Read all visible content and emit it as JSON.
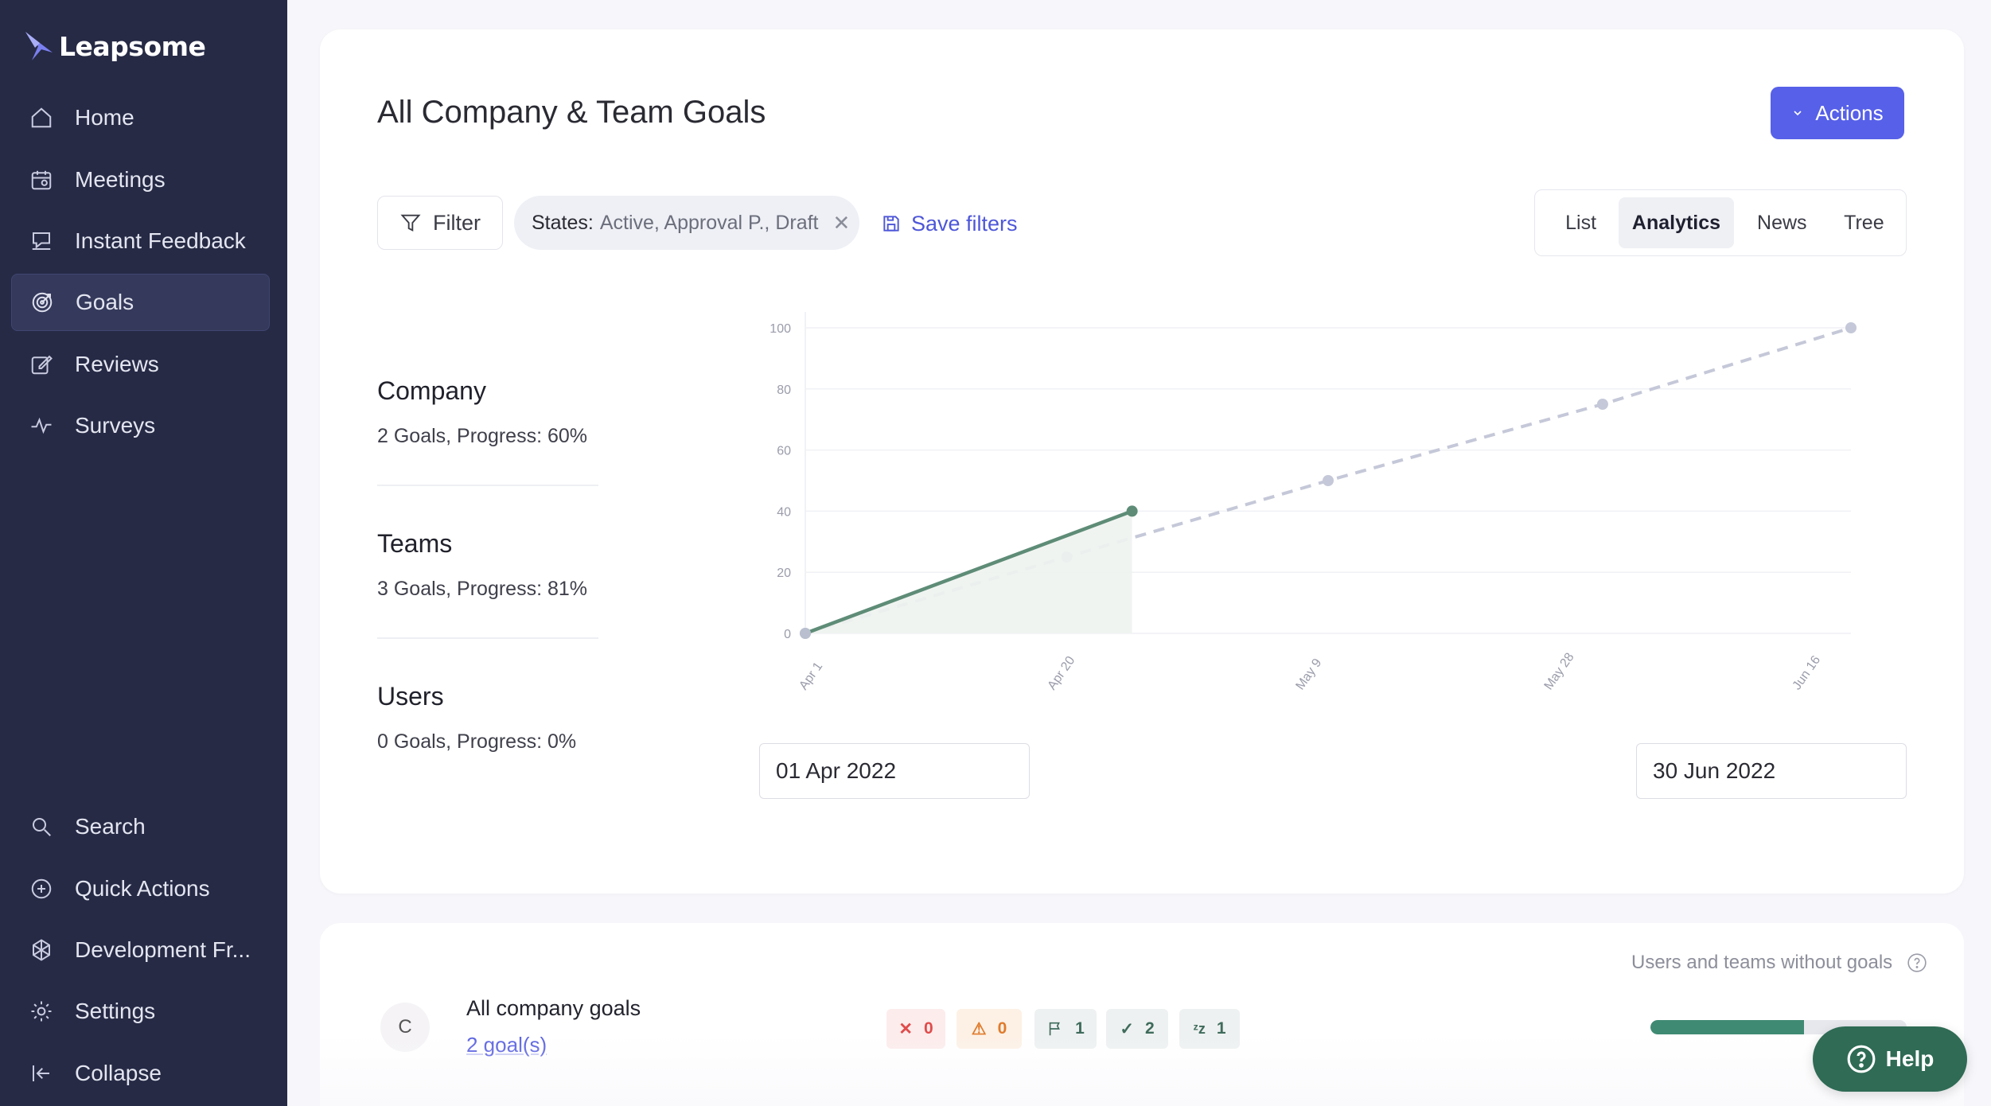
{
  "brand": {
    "name": "Leapsome"
  },
  "sidebar": {
    "items": [
      {
        "label": "Home",
        "icon": "home-icon"
      },
      {
        "label": "Meetings",
        "icon": "calendar-icon"
      },
      {
        "label": "Instant Feedback",
        "icon": "feedback-icon"
      },
      {
        "label": "Goals",
        "icon": "target-icon",
        "active": true
      },
      {
        "label": "Reviews",
        "icon": "edit-icon"
      },
      {
        "label": "Surveys",
        "icon": "pulse-icon"
      }
    ],
    "bottom_items": [
      {
        "label": "Search",
        "icon": "search-icon"
      },
      {
        "label": "Quick Actions",
        "icon": "plus-circle-icon"
      },
      {
        "label": "Development Fr...",
        "icon": "framework-icon"
      },
      {
        "label": "Settings",
        "icon": "gear-icon"
      },
      {
        "label": "Collapse",
        "icon": "collapse-icon"
      }
    ]
  },
  "header": {
    "title": "All Company & Team Goals",
    "actions_label": "Actions"
  },
  "filters": {
    "filter_label": "Filter",
    "chip_label": "States:",
    "chip_values": "Active, Approval P., Draft",
    "save_label": "Save filters"
  },
  "views": {
    "options": [
      "List",
      "Analytics",
      "News",
      "Tree"
    ],
    "active": "Analytics"
  },
  "stats": [
    {
      "title": "Company",
      "detail": "2 Goals, Progress: 60%"
    },
    {
      "title": "Teams",
      "detail": "3 Goals, Progress: 81%"
    },
    {
      "title": "Users",
      "detail": "0 Goals, Progress: 0%"
    }
  ],
  "chart_data": {
    "type": "line",
    "y_ticks": [
      0,
      20,
      40,
      60,
      80,
      100
    ],
    "x_ticks": [
      "Apr 1",
      "Apr 20",
      "May 9",
      "May 28",
      "Jun 16"
    ],
    "ylim": [
      0,
      100
    ],
    "series": [
      {
        "style": "actual",
        "color": "#5e8c77",
        "points": [
          {
            "x": "2022-04-01",
            "y": 0
          },
          {
            "x": "2022-04-26",
            "y": 40
          }
        ]
      },
      {
        "style": "target",
        "color": "#c5c8d8",
        "points": [
          {
            "x": "2022-04-01",
            "y": 0
          },
          {
            "x": "2022-04-21",
            "y": 25
          },
          {
            "x": "2022-05-11",
            "y": 50
          },
          {
            "x": "2022-06-01",
            "y": 75
          },
          {
            "x": "2022-06-20",
            "y": 100
          }
        ]
      }
    ]
  },
  "date_range": {
    "start": "01 Apr 2022",
    "end": "30 Jun 2022"
  },
  "bottom_card": {
    "without_goals_label": "Users and teams without goals",
    "row": {
      "avatar_letter": "C",
      "title": "All company goals",
      "link": "2 goal(s)",
      "progress": 0.6,
      "badges": [
        {
          "icon": "x-icon",
          "count": "0",
          "bg": "#fdecec",
          "fg": "#e04b4b"
        },
        {
          "icon": "warning-icon",
          "count": "0",
          "bg": "#fdf1e6",
          "fg": "#e07b2c"
        },
        {
          "icon": "flag-icon",
          "count": "1",
          "bg": "#eef1f1",
          "fg": "#3f6b5c"
        },
        {
          "icon": "check-icon",
          "count": "2",
          "bg": "#eef1f1",
          "fg": "#3f6b5c"
        },
        {
          "icon": "sleep-icon",
          "count": "1",
          "bg": "#eef1f1",
          "fg": "#3f6b5c"
        }
      ]
    }
  },
  "help": {
    "label": "Help"
  }
}
